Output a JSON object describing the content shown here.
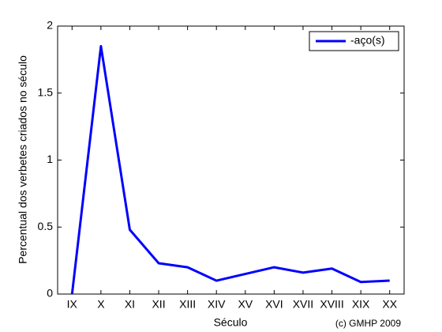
{
  "chart_data": {
    "type": "line",
    "xlabel": "Século",
    "ylabel": "Percentual dos verbetes criados no século",
    "footnote": "(c) GMHP 2009",
    "categories": [
      "IX",
      "X",
      "XI",
      "XII",
      "XIII",
      "XIV",
      "XV",
      "XVI",
      "XVII",
      "XVIII",
      "XIX",
      "XX"
    ],
    "series": [
      {
        "name": "-aço(s)",
        "color": "#0000ff",
        "values": [
          0,
          1.85,
          0.48,
          0.23,
          0.2,
          0.1,
          0.15,
          0.2,
          0.16,
          0.19,
          0.09,
          0.1
        ]
      }
    ],
    "ylim": [
      0,
      2
    ],
    "yticks": [
      0,
      0.5,
      1,
      1.5,
      2
    ],
    "legend": "upper right",
    "grid": false
  }
}
